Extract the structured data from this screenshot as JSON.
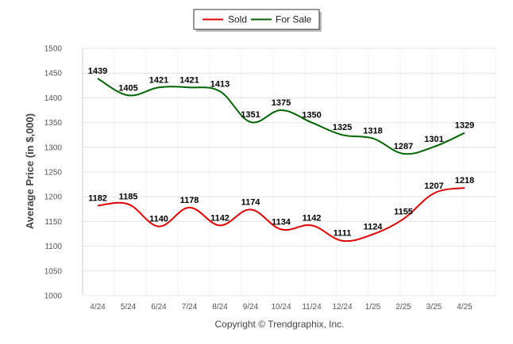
{
  "chart_data": {
    "type": "line",
    "title": "",
    "xlabel": "",
    "ylabel": "Average Price (in $,000)",
    "ylim": [
      1000,
      1500
    ],
    "yticks": [
      1000,
      1050,
      1100,
      1150,
      1200,
      1250,
      1300,
      1350,
      1400,
      1450,
      1500
    ],
    "categories": [
      "4/24",
      "5/24",
      "6/24",
      "7/24",
      "8/24",
      "9/24",
      "10/24",
      "11/24",
      "12/24",
      "1/25",
      "2/25",
      "3/25",
      "4/25"
    ],
    "series": [
      {
        "name": "Sold",
        "color": "#e00000",
        "values": [
          1182,
          1185,
          1140,
          1178,
          1142,
          1174,
          1134,
          1142,
          1111,
          1124,
          1155,
          1207,
          1218
        ]
      },
      {
        "name": "For Sale",
        "color": "#006400",
        "values": [
          1439,
          1405,
          1421,
          1421,
          1413,
          1351,
          1375,
          1350,
          1325,
          1318,
          1287,
          1301,
          1329
        ]
      }
    ],
    "grid": true,
    "legend_position": "top-center",
    "data_labels": true
  },
  "footer": {
    "credit": "Copyright © Trendgraphix, Inc."
  }
}
